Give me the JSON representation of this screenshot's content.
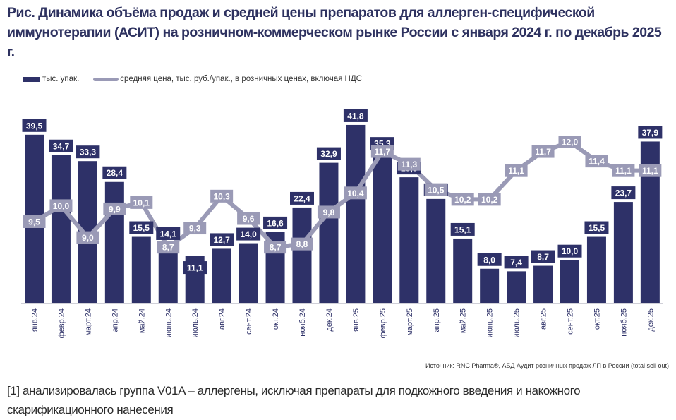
{
  "title": "Рис. Динамика объёма продаж и средней цены препаратов для аллерген-специфической иммунотерапии (АСИТ) на розничном-коммерческом рынке России с января 2024 г. по декабрь 2025 г.",
  "legend": {
    "bar_label": "тыс. упак.",
    "line_label": "средняя цена, тыс. руб./упак., в розничных ценах, включая НДС"
  },
  "source": "Источник: RNC Pharma®, АБД Аудит розничных продаж ЛП в России (total sell out)",
  "footnote": "[1] анализировалась группа V01A – аллергены, исключая препараты для подкожного введения и накожного скарификационного нанесения",
  "colors": {
    "bar": "#2e3168",
    "line": "#9a9ab6",
    "axis": "#d0d0d8"
  },
  "chart_data": {
    "type": "bar",
    "title": "Динамика объёма продаж и средней цены препаратов для АСИТ",
    "xlabel": "",
    "ylabel": "",
    "grid": false,
    "legend_position": "top-left",
    "categories": [
      "янв.24",
      "февр.24",
      "март.24",
      "апр.24",
      "май.24",
      "июнь.24",
      "июль.24",
      "авг.24",
      "сент.24",
      "окт.24",
      "нояб.24",
      "дек.24",
      "янв.25",
      "февр.25",
      "март.25",
      "апр.25",
      "май.25",
      "июнь.25",
      "июль.25",
      "авг.25",
      "сент.25",
      "окт.25",
      "нояб.25",
      "дек.25"
    ],
    "series": [
      {
        "name": "тыс. упак.",
        "type": "bar",
        "values": [
          39.5,
          34.7,
          33.3,
          28.4,
          15.5,
          14.1,
          11.1,
          12.7,
          14.0,
          16.6,
          22.4,
          32.9,
          41.8,
          35.3,
          29.5,
          24.4,
          15.1,
          8.0,
          7.4,
          8.7,
          10.0,
          15.5,
          23.7,
          37.9
        ],
        "labels": [
          "39,5",
          "34,7",
          "33,3",
          "28,4",
          "15,5",
          "14,1",
          "11,1",
          "12,7",
          "14,0",
          "16,6",
          "22,4",
          "32,9",
          "41,8",
          "35,3",
          "29,5",
          "24,4",
          "15,1",
          "8,0",
          "7,4",
          "8,7",
          "10,0",
          "15,5",
          "23,7",
          "37,9"
        ]
      },
      {
        "name": "средняя цена, тыс. руб./упак., в розничных ценах, включая НДС",
        "type": "line",
        "values": [
          9.5,
          10.0,
          9.0,
          9.9,
          10.1,
          8.7,
          9.3,
          10.3,
          9.6,
          8.7,
          8.8,
          9.8,
          10.4,
          11.7,
          11.3,
          10.5,
          10.2,
          10.2,
          11.1,
          11.7,
          12.0,
          11.4,
          11.1,
          11.1
        ],
        "labels": [
          "9,5",
          "10,0",
          "9,0",
          "9,9",
          "10,1",
          "8,7",
          "9,3",
          "10,3",
          "9,6",
          "8,7",
          "8,8",
          "9,8",
          "10,4",
          "11,7",
          "11,3",
          "10,5",
          "10,2",
          "10,2",
          "11,1",
          "11,7",
          "12,0",
          "11,4",
          "11,1",
          "11,1"
        ]
      }
    ]
  }
}
